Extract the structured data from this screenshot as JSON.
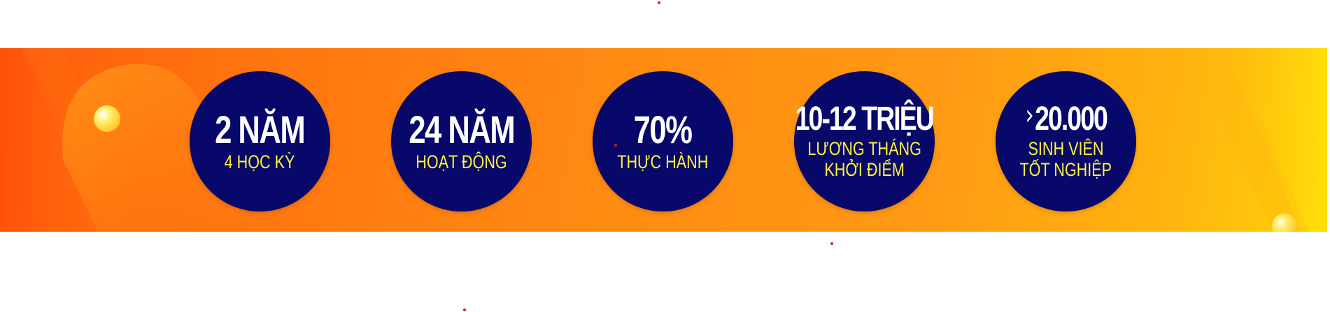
{
  "stats": [
    {
      "main": "2 NĂM",
      "sub": "4 HỌC KỲ",
      "sub2": ""
    },
    {
      "main": "24 NĂM",
      "sub": "HOẠT ĐỘNG",
      "sub2": ""
    },
    {
      "main": "70%",
      "sub": "THỰC HÀNH",
      "sub2": ""
    },
    {
      "main": "10-12 TRIỆU",
      "sub": "LƯƠNG THÁNG",
      "sub2": "KHỞI ĐIỂM"
    },
    {
      "main": "20.000",
      "sub": "SINH VIÊN",
      "sub2": "TỐT NGHIỆP",
      "prefix_icon": "greater-than-icon"
    }
  ],
  "colors": {
    "circle": "#07086a",
    "main_text": "#ffffff",
    "sub_text": "#fff23a",
    "banner_start": "#ff5c0c",
    "banner_end": "#ffd20a"
  }
}
